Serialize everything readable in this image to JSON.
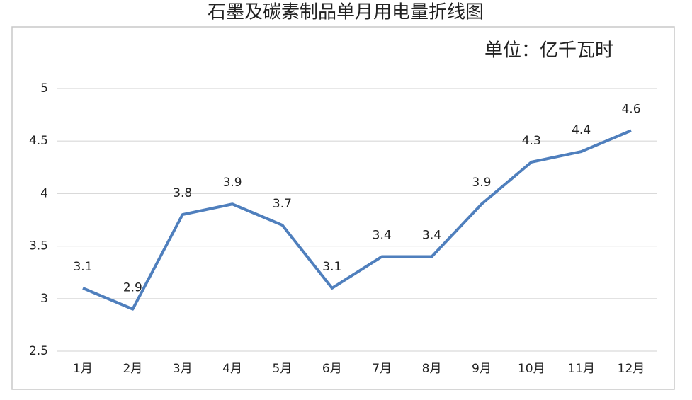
{
  "chart_data": {
    "type": "line",
    "title": "石墨及碳素制品单月用电量折线图",
    "annotation": "单位：亿千瓦时",
    "categories": [
      "1月",
      "2月",
      "3月",
      "4月",
      "5月",
      "6月",
      "7月",
      "8月",
      "9月",
      "10月",
      "11月",
      "12月"
    ],
    "series": [
      {
        "color": "#4f7fbd",
        "values": [
          3.1,
          2.9,
          3.8,
          3.9,
          3.7,
          3.1,
          3.4,
          3.4,
          3.9,
          4.3,
          4.4,
          4.6
        ]
      }
    ],
    "ylim": [
      2.5,
      5
    ],
    "yticks": [
      2.5,
      3,
      3.5,
      4,
      4.5,
      5
    ],
    "grid": true,
    "data_labels": true
  }
}
